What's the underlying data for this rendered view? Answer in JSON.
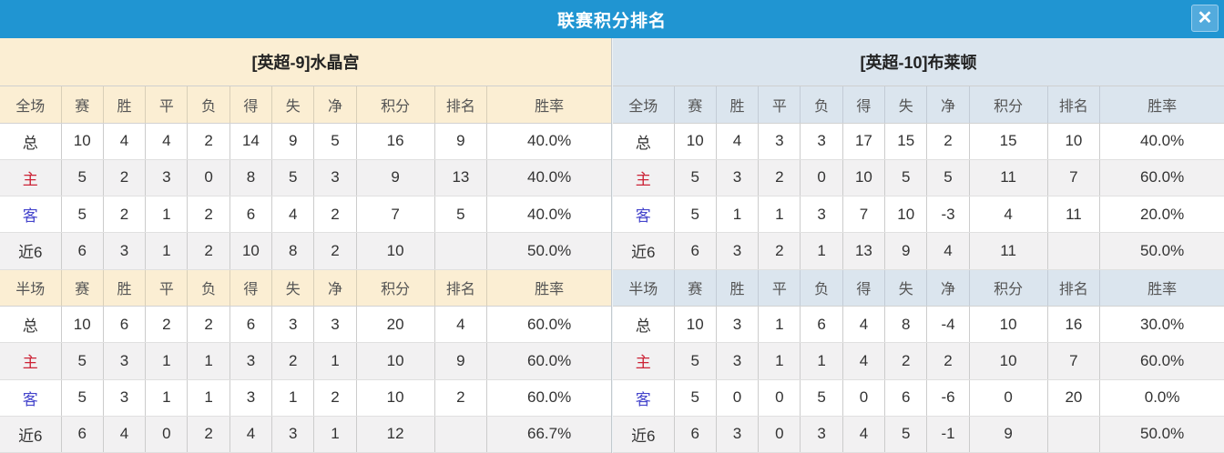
{
  "title": "联赛积分排名",
  "icons": {
    "close": "✕"
  },
  "colors": {
    "titlebar_bg": "#2095d2",
    "close_bg": "#53abdd",
    "left_accent": "#fbeed3",
    "right_accent": "#dbe5ee",
    "alt_row": "#f2f1f2",
    "points_color": "#ef4123",
    "rank_color": "#2f7fd1",
    "rate_color": "#ee2b22",
    "home_color": "#cc2336",
    "away_color": "#4545cc"
  },
  "columns": [
    "赛",
    "胜",
    "平",
    "负",
    "得",
    "失",
    "净",
    "积分",
    "排名",
    "胜率"
  ],
  "teams": [
    {
      "name": "[英超-9]水晶宫",
      "tables": [
        {
          "scope": "全场",
          "rows": [
            {
              "label": "总",
              "type": "total",
              "stats": [
                "10",
                "4",
                "4",
                "2",
                "14",
                "9",
                "5"
              ],
              "points": "16",
              "rank": "9",
              "rate": "40.0%"
            },
            {
              "label": "主",
              "type": "home",
              "stats": [
                "5",
                "2",
                "3",
                "0",
                "8",
                "5",
                "3"
              ],
              "points": "9",
              "rank": "13",
              "rate": "40.0%"
            },
            {
              "label": "客",
              "type": "away",
              "stats": [
                "5",
                "2",
                "1",
                "2",
                "6",
                "4",
                "2"
              ],
              "points": "7",
              "rank": "5",
              "rate": "40.0%"
            },
            {
              "label": "近6",
              "type": "last6",
              "stats": [
                "6",
                "3",
                "1",
                "2",
                "10",
                "8",
                "2"
              ],
              "points": "10",
              "rank": "",
              "rate": "50.0%"
            }
          ]
        },
        {
          "scope": "半场",
          "rows": [
            {
              "label": "总",
              "type": "total",
              "stats": [
                "10",
                "6",
                "2",
                "2",
                "6",
                "3",
                "3"
              ],
              "points": "20",
              "rank": "4",
              "rate": "60.0%"
            },
            {
              "label": "主",
              "type": "home",
              "stats": [
                "5",
                "3",
                "1",
                "1",
                "3",
                "2",
                "1"
              ],
              "points": "10",
              "rank": "9",
              "rate": "60.0%"
            },
            {
              "label": "客",
              "type": "away",
              "stats": [
                "5",
                "3",
                "1",
                "1",
                "3",
                "1",
                "2"
              ],
              "points": "10",
              "rank": "2",
              "rate": "60.0%"
            },
            {
              "label": "近6",
              "type": "last6",
              "stats": [
                "6",
                "4",
                "0",
                "2",
                "4",
                "3",
                "1"
              ],
              "points": "12",
              "rank": "",
              "rate": "66.7%"
            }
          ]
        }
      ]
    },
    {
      "name": "[英超-10]布莱顿",
      "tables": [
        {
          "scope": "全场",
          "rows": [
            {
              "label": "总",
              "type": "total",
              "stats": [
                "10",
                "4",
                "3",
                "3",
                "17",
                "15",
                "2"
              ],
              "points": "15",
              "rank": "10",
              "rate": "40.0%"
            },
            {
              "label": "主",
              "type": "home",
              "stats": [
                "5",
                "3",
                "2",
                "0",
                "10",
                "5",
                "5"
              ],
              "points": "11",
              "rank": "7",
              "rate": "60.0%"
            },
            {
              "label": "客",
              "type": "away",
              "stats": [
                "5",
                "1",
                "1",
                "3",
                "7",
                "10",
                "-3"
              ],
              "points": "4",
              "rank": "11",
              "rate": "20.0%"
            },
            {
              "label": "近6",
              "type": "last6",
              "stats": [
                "6",
                "3",
                "2",
                "1",
                "13",
                "9",
                "4"
              ],
              "points": "11",
              "rank": "",
              "rate": "50.0%"
            }
          ]
        },
        {
          "scope": "半场",
          "rows": [
            {
              "label": "总",
              "type": "total",
              "stats": [
                "10",
                "3",
                "1",
                "6",
                "4",
                "8",
                "-4"
              ],
              "points": "10",
              "rank": "16",
              "rate": "30.0%"
            },
            {
              "label": "主",
              "type": "home",
              "stats": [
                "5",
                "3",
                "1",
                "1",
                "4",
                "2",
                "2"
              ],
              "points": "10",
              "rank": "7",
              "rate": "60.0%"
            },
            {
              "label": "客",
              "type": "away",
              "stats": [
                "5",
                "0",
                "0",
                "5",
                "0",
                "6",
                "-6"
              ],
              "points": "0",
              "rank": "20",
              "rate": "0.0%"
            },
            {
              "label": "近6",
              "type": "last6",
              "stats": [
                "6",
                "3",
                "0",
                "3",
                "4",
                "5",
                "-1"
              ],
              "points": "9",
              "rank": "",
              "rate": "50.0%"
            }
          ]
        }
      ]
    }
  ]
}
